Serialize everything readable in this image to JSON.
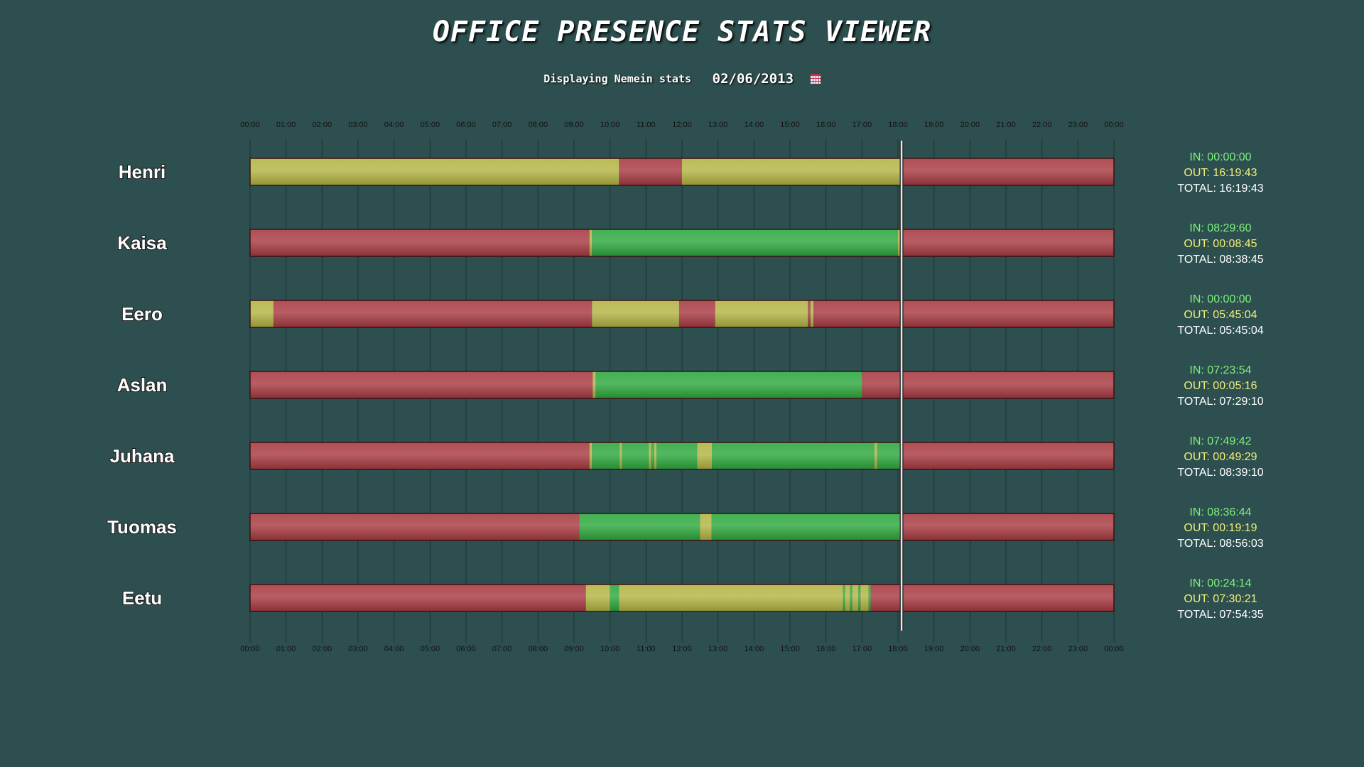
{
  "header": {
    "title": "OFFICE PRESENCE STATS VIEWER",
    "displaying_label": "Displaying Nemein stats",
    "date": "02/06/2013",
    "calendar_icon": "calendar-icon"
  },
  "colors": {
    "background": "#2e4f4f",
    "absent": "#a83a42",
    "in": "#2ea83e",
    "out": "#b3b444",
    "stat_in": "#7ef07e",
    "stat_out": "#f0f07a",
    "stat_total": "#ffffff",
    "current_time_line": "#e8e8e8"
  },
  "chart_data": {
    "type": "timeline",
    "x_axis": {
      "ticks": [
        "00:00",
        "01:00",
        "02:00",
        "03:00",
        "04:00",
        "05:00",
        "06:00",
        "07:00",
        "08:00",
        "09:00",
        "10:00",
        "11:00",
        "12:00",
        "13:00",
        "14:00",
        "15:00",
        "16:00",
        "17:00",
        "18:00",
        "19:00",
        "20:00",
        "21:00",
        "22:00",
        "23:00",
        "00:00"
      ],
      "range_hours": [
        0,
        24
      ]
    },
    "current_time_hours": 18.1,
    "legend_states": [
      "in",
      "out",
      "absent"
    ],
    "people": [
      {
        "name": "Henri",
        "segments": [
          {
            "start": 0,
            "end": 10.25,
            "state": "out"
          },
          {
            "start": 10.25,
            "end": 12.0,
            "state": "absent"
          },
          {
            "start": 12.0,
            "end": 18.1,
            "state": "out"
          },
          {
            "start": 18.1,
            "end": 24,
            "state": "absent"
          }
        ],
        "stats": {
          "in": "IN: 00:00:00",
          "out": "OUT: 16:19:43",
          "total": "TOTAL: 16:19:43"
        }
      },
      {
        "name": "Kaisa",
        "segments": [
          {
            "start": 0,
            "end": 9.43,
            "state": "absent"
          },
          {
            "start": 9.43,
            "end": 9.5,
            "state": "out"
          },
          {
            "start": 9.5,
            "end": 18.0,
            "state": "in"
          },
          {
            "start": 18.0,
            "end": 18.1,
            "state": "out"
          },
          {
            "start": 18.1,
            "end": 24,
            "state": "absent"
          }
        ],
        "stats": {
          "in": "IN: 08:29:60",
          "out": "OUT: 00:08:45",
          "total": "TOTAL: 08:38:45"
        }
      },
      {
        "name": "Eero",
        "segments": [
          {
            "start": 0,
            "end": 0.65,
            "state": "out"
          },
          {
            "start": 0.65,
            "end": 9.5,
            "state": "absent"
          },
          {
            "start": 9.5,
            "end": 11.92,
            "state": "out"
          },
          {
            "start": 11.92,
            "end": 12.92,
            "state": "absent"
          },
          {
            "start": 12.92,
            "end": 15.5,
            "state": "out"
          },
          {
            "start": 15.5,
            "end": 15.57,
            "state": "absent"
          },
          {
            "start": 15.57,
            "end": 15.65,
            "state": "out"
          },
          {
            "start": 15.65,
            "end": 24,
            "state": "absent"
          }
        ],
        "stats": {
          "in": "IN: 00:00:00",
          "out": "OUT: 05:45:04",
          "total": "TOTAL: 05:45:04"
        }
      },
      {
        "name": "Aslan",
        "segments": [
          {
            "start": 0,
            "end": 9.52,
            "state": "absent"
          },
          {
            "start": 9.52,
            "end": 9.6,
            "state": "out"
          },
          {
            "start": 9.6,
            "end": 17.0,
            "state": "in"
          },
          {
            "start": 17.0,
            "end": 24,
            "state": "absent"
          }
        ],
        "stats": {
          "in": "IN: 07:23:54",
          "out": "OUT: 00:05:16",
          "total": "TOTAL: 07:29:10"
        }
      },
      {
        "name": "Juhana",
        "segments": [
          {
            "start": 0,
            "end": 9.43,
            "state": "absent"
          },
          {
            "start": 9.43,
            "end": 9.5,
            "state": "out"
          },
          {
            "start": 9.5,
            "end": 10.27,
            "state": "in"
          },
          {
            "start": 10.27,
            "end": 10.33,
            "state": "out"
          },
          {
            "start": 10.33,
            "end": 11.08,
            "state": "in"
          },
          {
            "start": 11.08,
            "end": 11.14,
            "state": "out"
          },
          {
            "start": 11.14,
            "end": 11.23,
            "state": "in"
          },
          {
            "start": 11.23,
            "end": 11.29,
            "state": "out"
          },
          {
            "start": 11.29,
            "end": 12.42,
            "state": "in"
          },
          {
            "start": 12.42,
            "end": 12.83,
            "state": "out"
          },
          {
            "start": 12.83,
            "end": 17.35,
            "state": "in"
          },
          {
            "start": 17.35,
            "end": 17.42,
            "state": "out"
          },
          {
            "start": 17.42,
            "end": 18.1,
            "state": "in"
          },
          {
            "start": 18.1,
            "end": 24,
            "state": "absent"
          }
        ],
        "stats": {
          "in": "IN: 07:49:42",
          "out": "OUT: 00:49:29",
          "total": "TOTAL: 08:39:10"
        }
      },
      {
        "name": "Tuomas",
        "segments": [
          {
            "start": 0,
            "end": 9.15,
            "state": "absent"
          },
          {
            "start": 9.15,
            "end": 12.5,
            "state": "in"
          },
          {
            "start": 12.5,
            "end": 12.82,
            "state": "out"
          },
          {
            "start": 12.82,
            "end": 18.1,
            "state": "in"
          },
          {
            "start": 18.1,
            "end": 24,
            "state": "absent"
          }
        ],
        "stats": {
          "in": "IN: 08:36:44",
          "out": "OUT: 00:19:19",
          "total": "TOTAL: 08:56:03"
        }
      },
      {
        "name": "Eetu",
        "segments": [
          {
            "start": 0,
            "end": 9.33,
            "state": "absent"
          },
          {
            "start": 9.33,
            "end": 10.0,
            "state": "out"
          },
          {
            "start": 10.0,
            "end": 10.25,
            "state": "in"
          },
          {
            "start": 10.25,
            "end": 16.47,
            "state": "out"
          },
          {
            "start": 16.47,
            "end": 16.53,
            "state": "in"
          },
          {
            "start": 16.53,
            "end": 16.67,
            "state": "out"
          },
          {
            "start": 16.67,
            "end": 16.73,
            "state": "in"
          },
          {
            "start": 16.73,
            "end": 16.9,
            "state": "out"
          },
          {
            "start": 16.9,
            "end": 16.96,
            "state": "in"
          },
          {
            "start": 16.96,
            "end": 17.18,
            "state": "out"
          },
          {
            "start": 17.18,
            "end": 17.24,
            "state": "in"
          },
          {
            "start": 17.24,
            "end": 24,
            "state": "absent"
          }
        ],
        "stats": {
          "in": "IN: 00:24:14",
          "out": "OUT: 07:30:21",
          "total": "TOTAL: 07:54:35"
        }
      }
    ]
  }
}
